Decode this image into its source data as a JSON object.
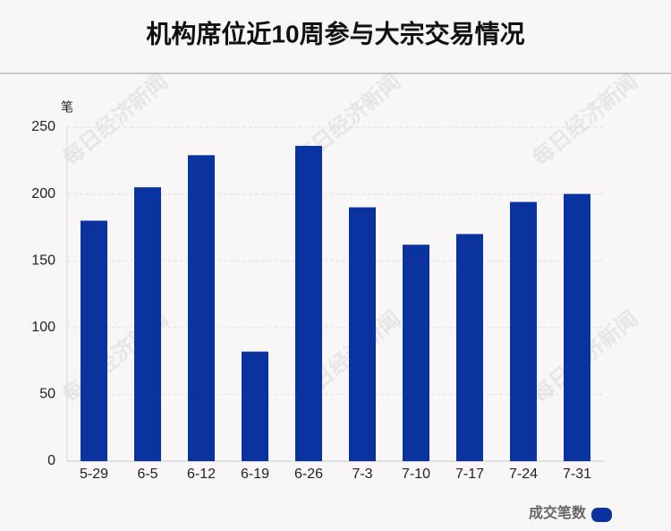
{
  "chart_data": {
    "type": "bar",
    "title": "机构席位近10周参与大宗交易情况",
    "y_unit": "笔",
    "watermark": "每日经济新闻",
    "categories": [
      "5-29",
      "6-5",
      "6-12",
      "6-19",
      "6-26",
      "7-3",
      "7-10",
      "7-17",
      "7-24",
      "7-31"
    ],
    "series": [
      {
        "name": "成交笔数",
        "color": "#0b33a0",
        "values": [
          180,
          205,
          229,
          82,
          236,
          190,
          162,
          170,
          194,
          200
        ]
      }
    ],
    "ylim": [
      0,
      250
    ],
    "yticks": [
      0,
      50,
      100,
      150,
      200,
      250
    ],
    "grid": true,
    "legend": "bottom-right"
  }
}
